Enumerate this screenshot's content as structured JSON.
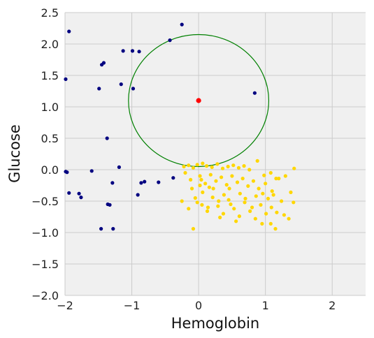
{
  "chart_data": {
    "type": "scatter",
    "title": "",
    "xlabel": "Hemoglobin",
    "ylabel": "Glucose",
    "xlim": [
      -2,
      2.5
    ],
    "ylim": [
      -2,
      2.5
    ],
    "xticks": [
      -2,
      -1,
      0,
      1,
      2
    ],
    "xtick_labels": [
      "−2",
      "−1",
      "0",
      "1",
      "2"
    ],
    "yticks": [
      -2.0,
      -1.5,
      -1.0,
      -0.5,
      0.0,
      0.5,
      1.0,
      1.5,
      2.0,
      2.5
    ],
    "ytick_labels": [
      "−2.0",
      "−1.5",
      "−1.0",
      "−0.5",
      "0.0",
      "0.5",
      "1.0",
      "1.5",
      "2.0",
      "2.5"
    ],
    "grid": true,
    "background": "#f0f0f0",
    "series": [
      {
        "color": "#000080",
        "points": [
          [
            -1.94,
            2.2
          ],
          [
            -0.25,
            2.31
          ],
          [
            -0.43,
            2.06
          ],
          [
            -1.13,
            1.89
          ],
          [
            -0.99,
            1.89
          ],
          [
            -0.89,
            1.88
          ],
          [
            -1.45,
            1.67
          ],
          [
            -1.42,
            1.7
          ],
          [
            -1.99,
            1.44
          ],
          [
            -1.16,
            1.36
          ],
          [
            -0.98,
            1.29
          ],
          [
            -1.49,
            1.29
          ],
          [
            0.84,
            1.22
          ],
          [
            -1.37,
            0.5
          ],
          [
            -1.19,
            0.04
          ],
          [
            -1.99,
            -0.03
          ],
          [
            -1.97,
            -0.04
          ],
          [
            -1.6,
            -0.02
          ],
          [
            -0.38,
            -0.13
          ],
          [
            -1.29,
            -0.21
          ],
          [
            -0.86,
            -0.21
          ],
          [
            -0.81,
            -0.19
          ],
          [
            -0.6,
            -0.2
          ],
          [
            -1.94,
            -0.37
          ],
          [
            -1.79,
            -0.38
          ],
          [
            -1.76,
            -0.44
          ],
          [
            -0.91,
            -0.4
          ],
          [
            -1.36,
            -0.55
          ],
          [
            -1.33,
            -0.56
          ],
          [
            -1.46,
            -0.94
          ],
          [
            -1.28,
            -0.94
          ]
        ]
      },
      {
        "color": "#ffd700",
        "points": [
          [
            -0.22,
            0.05
          ],
          [
            -0.15,
            0.07
          ],
          [
            -0.08,
            0.03
          ],
          [
            -0.02,
            0.08
          ],
          [
            0.06,
            0.1
          ],
          [
            0.12,
            0.06
          ],
          [
            0.2,
            0.04
          ],
          [
            0.28,
            0.09
          ],
          [
            0.36,
            0.02
          ],
          [
            0.44,
            0.05
          ],
          [
            0.52,
            0.07
          ],
          [
            0.6,
            0.03
          ],
          [
            0.68,
            0.06
          ],
          [
            0.76,
            0.0
          ],
          [
            0.88,
            0.14
          ],
          [
            0.98,
            -0.09
          ],
          [
            1.08,
            -0.05
          ],
          [
            1.2,
            -0.14
          ],
          [
            1.3,
            -0.1
          ],
          [
            1.43,
            0.02
          ],
          [
            -0.2,
            -0.05
          ],
          [
            -0.12,
            -0.16
          ],
          [
            0.02,
            -0.1
          ],
          [
            0.1,
            -0.22
          ],
          [
            0.18,
            -0.08
          ],
          [
            0.26,
            -0.18
          ],
          [
            0.34,
            -0.12
          ],
          [
            0.42,
            -0.24
          ],
          [
            0.5,
            -0.1
          ],
          [
            0.58,
            -0.2
          ],
          [
            0.66,
            -0.14
          ],
          [
            0.74,
            -0.26
          ],
          [
            0.82,
            -0.18
          ],
          [
            0.9,
            -0.3
          ],
          [
            1.0,
            -0.22
          ],
          [
            1.1,
            -0.34
          ],
          [
            1.16,
            -0.14
          ],
          [
            -0.25,
            -0.5
          ],
          [
            -0.15,
            -0.62
          ],
          [
            -0.05,
            -0.45
          ],
          [
            0.05,
            -0.56
          ],
          [
            0.13,
            -0.66
          ],
          [
            0.21,
            -0.44
          ],
          [
            0.29,
            -0.58
          ],
          [
            0.37,
            -0.7
          ],
          [
            0.45,
            -0.48
          ],
          [
            0.53,
            -0.62
          ],
          [
            0.61,
            -0.74
          ],
          [
            0.69,
            -0.52
          ],
          [
            0.77,
            -0.66
          ],
          [
            0.85,
            -0.78
          ],
          [
            0.93,
            -0.56
          ],
          [
            1.01,
            -0.7
          ],
          [
            1.09,
            -0.6
          ],
          [
            1.17,
            -0.68
          ],
          [
            1.28,
            -0.72
          ],
          [
            1.35,
            -0.78
          ],
          [
            1.42,
            -0.52
          ],
          [
            -0.08,
            -0.94
          ],
          [
            0.32,
            -0.76
          ],
          [
            0.56,
            -0.82
          ],
          [
            0.95,
            -0.86
          ],
          [
            1.08,
            -0.86
          ],
          [
            1.15,
            -0.94
          ],
          [
            -0.1,
            -0.3
          ],
          [
            0.06,
            -0.36
          ],
          [
            0.22,
            -0.3
          ],
          [
            0.38,
            -0.4
          ],
          [
            0.62,
            -0.38
          ],
          [
            0.86,
            -0.42
          ],
          [
            1.04,
            -0.46
          ],
          [
            1.24,
            -0.5
          ],
          [
            0.46,
            -0.3
          ],
          [
            0.7,
            -0.46
          ],
          [
            -0.02,
            -0.52
          ],
          [
            0.14,
            -0.6
          ],
          [
            0.3,
            -0.5
          ],
          [
            0.02,
            -0.25
          ],
          [
            0.16,
            -0.28
          ],
          [
            0.48,
            -0.55
          ],
          [
            0.8,
            -0.6
          ],
          [
            1.12,
            -0.4
          ],
          [
            1.38,
            -0.36
          ],
          [
            0.96,
            -0.38
          ],
          [
            0.04,
            -0.16
          ]
        ]
      },
      {
        "color": "#ff0000",
        "points": [
          [
            0.0,
            1.1
          ]
        ]
      }
    ],
    "annotations": [
      {
        "shape": "circle",
        "center": [
          0.0,
          1.1
        ],
        "radius": 1.05,
        "color": "#008000"
      }
    ]
  }
}
